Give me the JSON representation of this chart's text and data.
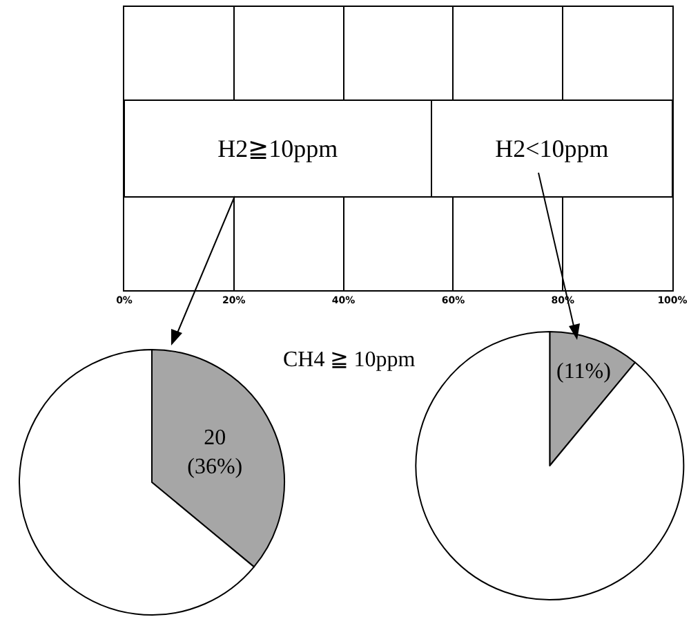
{
  "chart_data": [
    {
      "type": "bar",
      "orientation": "horizontal",
      "stacked": true,
      "categories": [
        null
      ],
      "xlim": [
        0,
        100
      ],
      "xticks": [
        {
          "value": 0,
          "label": "0%"
        },
        {
          "value": 20,
          "label": "20%"
        },
        {
          "value": 40,
          "label": "40%"
        },
        {
          "value": 60,
          "label": "60%"
        },
        {
          "value": 80,
          "label": "80%"
        },
        {
          "value": 100,
          "label": "100%"
        }
      ],
      "grid": "x",
      "tick_labels": "x",
      "legend": false,
      "series": [
        {
          "name": "H2≧10ppm",
          "color": "#ffffff",
          "values": [
            56
          ]
        },
        {
          "name": "H2<10ppm",
          "color": "#ffffff",
          "values": [
            44
          ]
        }
      ]
    },
    {
      "type": "pie",
      "categories": [
        null,
        null
      ],
      "values": [
        36,
        64
      ],
      "colors": [
        "#a6a6a6",
        "#ffffff"
      ],
      "value_labels": [
        "20\n(36%)",
        null
      ],
      "legend": false
    },
    {
      "type": "pie",
      "categories": [
        null,
        null
      ],
      "values": [
        11,
        89
      ],
      "colors": [
        "#a6a6a6",
        "#ffffff"
      ],
      "value_labels": [
        "(11%)",
        null
      ],
      "annotations": [
        "CH4 ≧ 10ppm"
      ],
      "legend": false
    }
  ]
}
